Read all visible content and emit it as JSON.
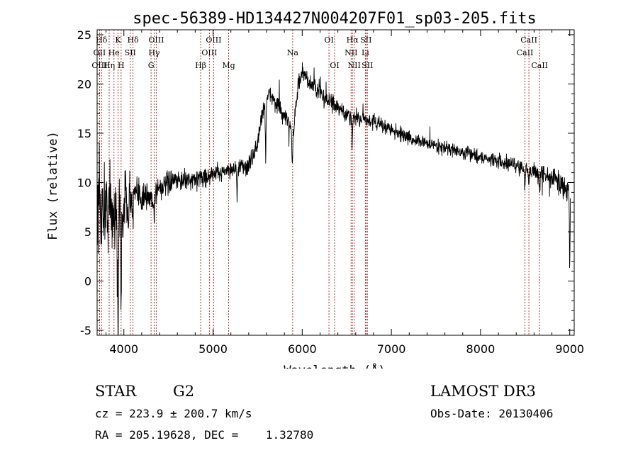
{
  "chart_data": {
    "type": "line",
    "title": "spec-56389-HD134427N004207F01_sp03-205.fits",
    "xlabel": "Wavelength (Å)",
    "ylabel": "Flux (relative)",
    "xlim": [
      3700,
      9050
    ],
    "ylim": [
      -5.5,
      25.5
    ],
    "xticks": [
      4000,
      5000,
      6000,
      7000,
      8000,
      9000
    ],
    "yticks": [
      -5,
      0,
      5,
      10,
      15,
      20,
      25
    ],
    "grid": false,
    "series": [
      {
        "name": "flux",
        "anchors": [
          [
            3700,
            7.0
          ],
          [
            3800,
            7.5
          ],
          [
            3900,
            7.0
          ],
          [
            4000,
            8.0
          ],
          [
            4100,
            8.5
          ],
          [
            4200,
            8.8
          ],
          [
            4300,
            8.3
          ],
          [
            4400,
            9.5
          ],
          [
            4600,
            10.2
          ],
          [
            4800,
            10.3
          ],
          [
            5000,
            10.8
          ],
          [
            5200,
            11.4
          ],
          [
            5400,
            11.6
          ],
          [
            5500,
            14.0
          ],
          [
            5560,
            17.5
          ],
          [
            5650,
            19.0
          ],
          [
            5800,
            16.5
          ],
          [
            5900,
            15.5
          ],
          [
            5960,
            20.0
          ],
          [
            6000,
            21.0
          ],
          [
            6100,
            20.0
          ],
          [
            6300,
            18.2
          ],
          [
            6500,
            16.8
          ],
          [
            6700,
            16.5
          ],
          [
            6900,
            15.8
          ],
          [
            7200,
            14.5
          ],
          [
            7600,
            13.5
          ],
          [
            8000,
            12.6
          ],
          [
            8400,
            11.7
          ],
          [
            8800,
            10.5
          ],
          [
            9000,
            9.5
          ]
        ],
        "noise": [
          [
            3700,
            4.0
          ],
          [
            3900,
            3.8
          ],
          [
            4000,
            2.8
          ],
          [
            4100,
            1.6
          ],
          [
            4300,
            1.2
          ],
          [
            4400,
            0.9
          ],
          [
            5000,
            0.7
          ],
          [
            6000,
            0.8
          ],
          [
            7000,
            0.6
          ],
          [
            8000,
            0.5
          ],
          [
            8800,
            0.8
          ],
          [
            9000,
            1.2
          ]
        ],
        "dips": [
          [
            3934,
            14.0,
            8
          ],
          [
            3969,
            10.0,
            8
          ],
          [
            4101,
            3.0,
            6
          ],
          [
            4340,
            2.5,
            6
          ],
          [
            5270,
            3.0,
            5
          ],
          [
            5590,
            6.0,
            5
          ],
          [
            5890,
            4.0,
            6
          ],
          [
            6563,
            2.0,
            6
          ],
          [
            8498,
            2.0,
            6
          ],
          [
            8542,
            2.0,
            6
          ],
          [
            8662,
            2.0,
            6
          ],
          [
            9000,
            9.0,
            5
          ]
        ]
      }
    ],
    "lines": [
      {
        "label": "Hδ",
        "wl": 3750,
        "row": 0
      },
      {
        "label": "K",
        "wl": 3934,
        "row": 0
      },
      {
        "label": "Hδ",
        "wl": 4102,
        "row": 0
      },
      {
        "label": "OIII",
        "wl": 4363,
        "row": 0
      },
      {
        "label": "OIII",
        "wl": 5007,
        "row": 0
      },
      {
        "label": "OI",
        "wl": 6300,
        "row": 0
      },
      {
        "label": "Hα",
        "wl": 6563,
        "row": 0
      },
      {
        "label": "SII",
        "wl": 6716,
        "row": 0
      },
      {
        "label": "CaII",
        "wl": 8542,
        "row": 0
      },
      {
        "label": "OII",
        "wl": 3727,
        "row": 1
      },
      {
        "label": "He",
        "wl": 3889,
        "row": 1
      },
      {
        "label": "SII",
        "wl": 4072,
        "row": 1
      },
      {
        "label": "Hγ",
        "wl": 4340,
        "row": 1
      },
      {
        "label": "OIII",
        "wl": 4959,
        "row": 1
      },
      {
        "label": "Na",
        "wl": 5893,
        "row": 1
      },
      {
        "label": "NII",
        "wl": 6548,
        "row": 1
      },
      {
        "label": "Li",
        "wl": 6708,
        "row": 1
      },
      {
        "label": "CaII",
        "wl": 8498,
        "row": 1
      },
      {
        "label": "OIII",
        "wl": 3727,
        "row": 2
      },
      {
        "label": "Hη",
        "wl": 3835,
        "row": 2
      },
      {
        "label": "H",
        "wl": 3969,
        "row": 2
      },
      {
        "label": "G",
        "wl": 4305,
        "row": 2
      },
      {
        "label": "Hβ",
        "wl": 4861,
        "row": 2
      },
      {
        "label": "Mg",
        "wl": 5175,
        "row": 2
      },
      {
        "label": "OI",
        "wl": 6363,
        "row": 2
      },
      {
        "label": "NII",
        "wl": 6583,
        "row": 2
      },
      {
        "label": "SII",
        "wl": 6731,
        "row": 2
      },
      {
        "label": "CaII",
        "wl": 8662,
        "row": 2
      }
    ]
  },
  "info": {
    "class_label": "STAR",
    "subclass": "G2",
    "cz": "cz = 223.9 ± 200.7 km/s",
    "radec": "RA = 205.19628, DEC =    1.32780",
    "survey": "LAMOST DR3",
    "obs_date": "Obs-Date: 20130406"
  },
  "colors": {
    "line_marker": "#b22222",
    "spectrum": "#000000"
  }
}
